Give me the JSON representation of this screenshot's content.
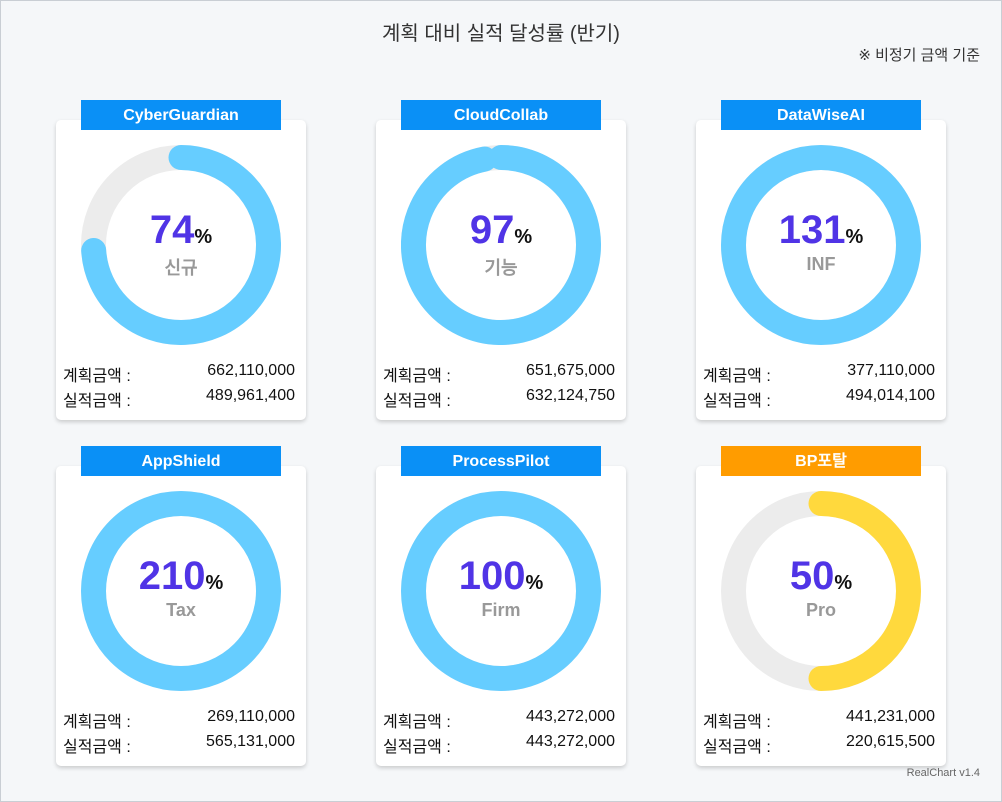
{
  "title": "계획 대비 실적 달성률 (반기)",
  "note": "※ 비정기 금액 기준",
  "footer": "RealChart v1.4",
  "labels": {
    "plan": "계획금액 :",
    "actual": "실적금액 :",
    "percent_sign": "%"
  },
  "colors": {
    "header_blue": "#0a90f6",
    "header_orange": "#ff9c00",
    "ring_blue": "#66cdff",
    "ring_yellow": "#ffd93d",
    "track": "#ececec",
    "value_text": "#5034e6"
  },
  "chart_data": {
    "type": "gauge",
    "title": "계획 대비 실적 달성률 (반기)",
    "max_percent": 100,
    "items": [
      {
        "name": "CyberGuardian",
        "category": "신규",
        "percent": 74,
        "plan": "662,110,000",
        "actual": "489,961,400",
        "header": "blue",
        "ring": "blue"
      },
      {
        "name": "CloudCollab",
        "category": "기능",
        "percent": 97,
        "plan": "651,675,000",
        "actual": "632,124,750",
        "header": "blue",
        "ring": "blue"
      },
      {
        "name": "DataWiseAI",
        "category": "INF",
        "percent": 131,
        "plan": "377,110,000",
        "actual": "494,014,100",
        "header": "blue",
        "ring": "blue"
      },
      {
        "name": "AppShield",
        "category": "Tax",
        "percent": 210,
        "plan": "269,110,000",
        "actual": "565,131,000",
        "header": "blue",
        "ring": "blue"
      },
      {
        "name": "ProcessPilot",
        "category": "Firm",
        "percent": 100,
        "plan": "443,272,000",
        "actual": "443,272,000",
        "header": "blue",
        "ring": "blue"
      },
      {
        "name": "BP포탈",
        "category": "Pro",
        "percent": 50,
        "plan": "441,231,000",
        "actual": "220,615,500",
        "header": "orange",
        "ring": "yellow"
      }
    ]
  }
}
